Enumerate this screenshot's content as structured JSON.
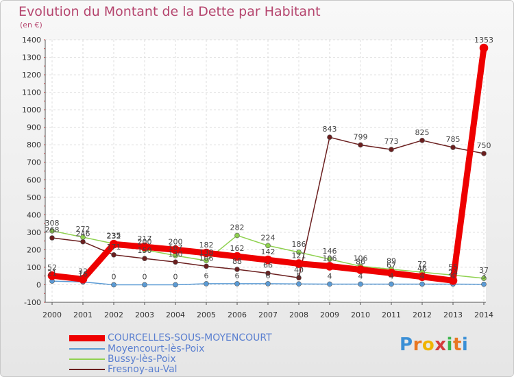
{
  "title": "Evolution du Montant de la Dette par Habitant",
  "subtitle": "(en €)",
  "logo": {
    "text": "Proxiti",
    "letters": [
      "P",
      "r",
      "o",
      "x",
      "i",
      "t",
      "i"
    ],
    "colors": [
      "#3a8fd6",
      "#e87722",
      "#f0b400",
      "#d43c3c",
      "#3ab54a",
      "#e87722",
      "#3a8fd6"
    ]
  },
  "chart_data": {
    "type": "line",
    "x": [
      "2000",
      "2001",
      "2002",
      "2003",
      "2004",
      "2005",
      "2006",
      "2007",
      "2008",
      "2009",
      "2010",
      "2011",
      "2012",
      "2013",
      "2014"
    ],
    "yticks": [
      "-100",
      "0",
      "100",
      "200",
      "300",
      "400",
      "500",
      "600",
      "700",
      "800",
      "900",
      "1000",
      "1100",
      "1200",
      "1300",
      "1400"
    ],
    "ylim": [
      -100,
      1400
    ],
    "grid": true,
    "legend_position": "bottom-left",
    "series": [
      {
        "name": "COURCELLES-SOUS-MOYENCOURT",
        "color": "#ee0000",
        "values": [
          52,
          32,
          232,
          217,
          200,
          182,
          162,
          142,
          121,
          106,
          86,
          67,
          46,
          24,
          1353
        ],
        "labels": [
          "52",
          "32",
          "232",
          "217",
          "200",
          "182",
          "162",
          "142",
          "121",
          "106",
          "86",
          "67",
          "46",
          "24",
          "1353"
        ]
      },
      {
        "name": "Moyencourt-lès-Poix",
        "color": "#5b9bd5",
        "values": [
          21,
          16,
          0,
          0,
          0,
          6,
          6,
          6,
          5,
          4,
          4,
          4,
          4,
          4,
          3
        ],
        "labels": [
          "21",
          "16",
          "0",
          "0",
          "0",
          "6",
          "6",
          "6",
          "5",
          "4",
          "4",
          "4",
          "4",
          "4",
          "3"
        ]
      },
      {
        "name": "Bussy-lès-Poix",
        "color": "#8fd14f",
        "values": [
          308,
          272,
          235,
          200,
          167,
          138,
          282,
          224,
          186,
          146,
          106,
          89,
          72,
          55,
          37
        ],
        "labels": [
          "308",
          "272",
          "235",
          "200",
          "167",
          "138",
          "282",
          "224",
          "186",
          "146",
          "106",
          "89",
          "72",
          "55",
          "37"
        ]
      },
      {
        "name": "Fresnoy-au-Val",
        "color": "#6b1f1f",
        "values": [
          268,
          246,
          171,
          150,
          130,
          106,
          88,
          66,
          40,
          843,
          799,
          773,
          825,
          785,
          750
        ],
        "labels": [
          "268",
          "246",
          "171",
          "150",
          "130",
          "106",
          "88",
          "66",
          "40",
          "843",
          "799",
          "773",
          "825",
          "785",
          "750"
        ]
      }
    ]
  }
}
